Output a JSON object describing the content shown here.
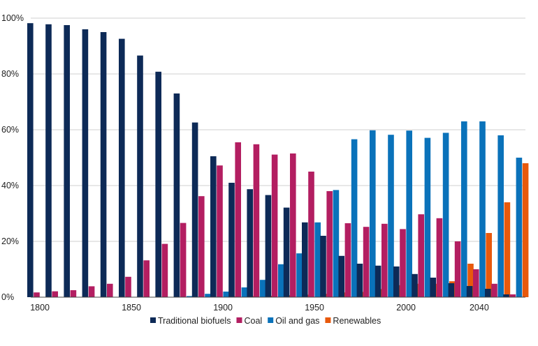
{
  "chart_data": {
    "type": "bar",
    "title": "",
    "xlabel": "",
    "ylabel": "",
    "ylim": [
      0,
      100
    ],
    "y_ticks": [
      0,
      20,
      40,
      60,
      80,
      100
    ],
    "y_tick_labels": [
      "0%",
      "20%",
      "40%",
      "60%",
      "80%",
      "100%"
    ],
    "x_tick_labels": [
      "1800",
      "1850",
      "1900",
      "1950",
      "2000",
      "2040"
    ],
    "categories": [
      "1800",
      "1810",
      "1820",
      "1830",
      "1840",
      "1850",
      "1860",
      "1870",
      "1880",
      "1890",
      "1900",
      "1910",
      "1920",
      "1930",
      "1940",
      "1950",
      "1960",
      "1970",
      "1980",
      "1990",
      "2000",
      "2010",
      "2020",
      "2030",
      "2040",
      "2050",
      "2060"
    ],
    "grid": true,
    "legend_position": "bottom",
    "series": [
      {
        "name": "Traditional biofuels",
        "color": "#0d2a57",
        "values": [
          98.2,
          97.8,
          97.5,
          96.0,
          95.0,
          92.6,
          86.6,
          80.8,
          73.0,
          62.6,
          50.5,
          41.0,
          38.7,
          36.6,
          32.1,
          26.8,
          22.0,
          14.8,
          12.0,
          11.3,
          11.0,
          8.3,
          7.0,
          5.0,
          4.0,
          3.0,
          1.0
        ]
      },
      {
        "name": "Coal",
        "color": "#b31e61",
        "values": [
          1.7,
          2.1,
          2.5,
          3.9,
          4.8,
          7.3,
          13.2,
          19.1,
          26.6,
          36.2,
          47.2,
          55.5,
          54.8,
          51.1,
          51.5,
          45.0,
          38.0,
          26.5,
          25.2,
          26.3,
          24.4,
          29.7,
          28.3,
          20.0,
          10.0,
          4.8,
          1.0
        ]
      },
      {
        "name": "Oil and gas",
        "color": "#0a72ba",
        "values": [
          0,
          0,
          0,
          0,
          0,
          0,
          0,
          0.1,
          0.4,
          1.2,
          2.0,
          3.5,
          6.2,
          11.8,
          15.7,
          26.8,
          38.4,
          56.6,
          59.8,
          58.2,
          59.7,
          57.1,
          58.9,
          63.0,
          63.0,
          58.0,
          50.0
        ]
      },
      {
        "name": "Renewables",
        "color": "#e8590c",
        "values": [
          0,
          0,
          0,
          0,
          0,
          0,
          0,
          0,
          0,
          0,
          0.3,
          0.4,
          0.5,
          0.7,
          0.9,
          1.2,
          1.7,
          1.9,
          2.9,
          4.3,
          4.8,
          4.8,
          5.7,
          12.0,
          23.0,
          34.0,
          48.0
        ]
      }
    ]
  }
}
